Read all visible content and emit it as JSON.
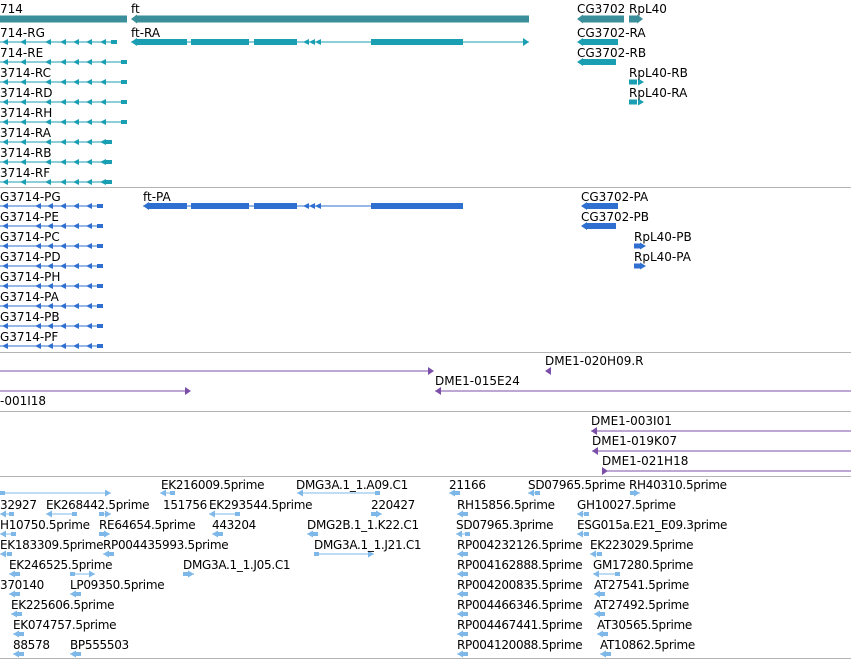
{
  "colors": {
    "gene": "#3a8f9a",
    "rna": "#1a9fb2",
    "protein": "#2f6fd0",
    "clone": "#7b4fa8",
    "est": "#7db8e8",
    "separator": "#b4b4b4"
  },
  "gene_track": {
    "labels": [
      "714",
      "ft",
      "CG3702",
      "RpL40"
    ]
  },
  "transcript_track": {
    "labels": [
      "714-RG",
      "714-RE",
      "3714-RC",
      "3714-RD",
      "3714-RH",
      "3714-RA",
      "3714-RB",
      "3714-RF",
      "ft-RA",
      "CG3702-RA",
      "CG3702-RB",
      "RpL40-RB",
      "RpL40-RA"
    ]
  },
  "protein_track": {
    "labels": [
      "G3714-PG",
      "G3714-PE",
      "G3714-PC",
      "G3714-PD",
      "G3714-PH",
      "G3714-PA",
      "G3714-PB",
      "G3714-PF",
      "ft-PA",
      "CG3702-PA",
      "CG3702-PB",
      "RpL40-PB",
      "RpL40-PA"
    ]
  },
  "clone_track_1": {
    "labels": [
      "DME1-020H09.R",
      "DME1-015E24",
      "-001I18"
    ]
  },
  "clone_track_2": {
    "labels": [
      "DME1-003I01",
      "DME1-019K07",
      "DME1-021H18"
    ]
  },
  "est_track": {
    "labels": [
      "EK216009.5prime",
      "DMG3A.1_1.A09.C1",
      "21166",
      "SD07965.5prime",
      "RH40310.5prime",
      "32927",
      "EK268442.5prime",
      "151756",
      "EK293544.5prime",
      "220427",
      "RH15856.5prime",
      "GH10027.5prime",
      "H10750.5prime",
      "RE64654.5prime",
      "443204",
      "DMG2B.1_1.K22.C1",
      "SD07965.3prime",
      "ESG015a.E21_E09.3prime",
      "EK183309.5prime",
      "RP004435993.5prime",
      "DMG3A.1_1.J21.C1",
      "RP004232126.5prime",
      "EK223029.5prime",
      "EK246525.5prime",
      "DMG3A.1_1.J05.C1",
      "RP004162888.5prime",
      "GM17280.5prime",
      "370140",
      "LP09350.5prime",
      "RP004200835.5prime",
      "AT27541.5prime",
      "EK225606.5prime",
      "RP004466346.5prime",
      "AT27492.5prime",
      "EK074757.5prime",
      "RP004467441.5prime",
      "AT30565.5prime",
      "88578",
      "BP555503",
      "RP004120088.5prime",
      "AT10862.5prime"
    ]
  }
}
